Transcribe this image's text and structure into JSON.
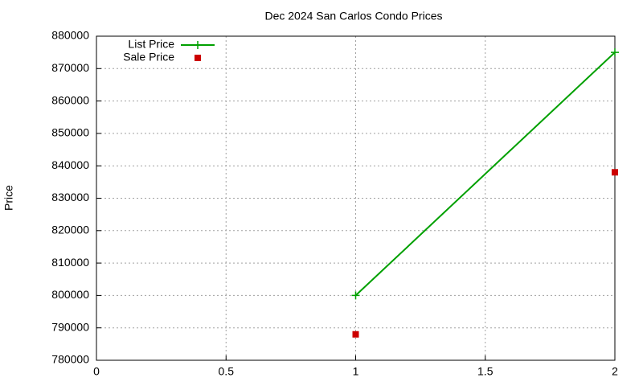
{
  "chart_data": {
    "type": "line",
    "title": "Dec 2024 San Carlos Condo Prices",
    "y_label": "Price",
    "xlim": [
      0,
      2
    ],
    "xticks": [
      0,
      0.5,
      1,
      1.5,
      2
    ],
    "ylim": [
      780000,
      880000
    ],
    "yticks": [
      780000,
      790000,
      800000,
      810000,
      820000,
      830000,
      840000,
      850000,
      860000,
      870000,
      880000
    ],
    "grid": true,
    "legend": "top-left",
    "series": [
      {
        "name": "List Price",
        "color": "#00a000",
        "style": "linespoints",
        "x": [
          1,
          2
        ],
        "values": [
          800000,
          875000
        ]
      },
      {
        "name": "Sale Price",
        "color": "#cc0000",
        "style": "points",
        "x": [
          1,
          2
        ],
        "values": [
          788000,
          838000
        ]
      }
    ]
  }
}
